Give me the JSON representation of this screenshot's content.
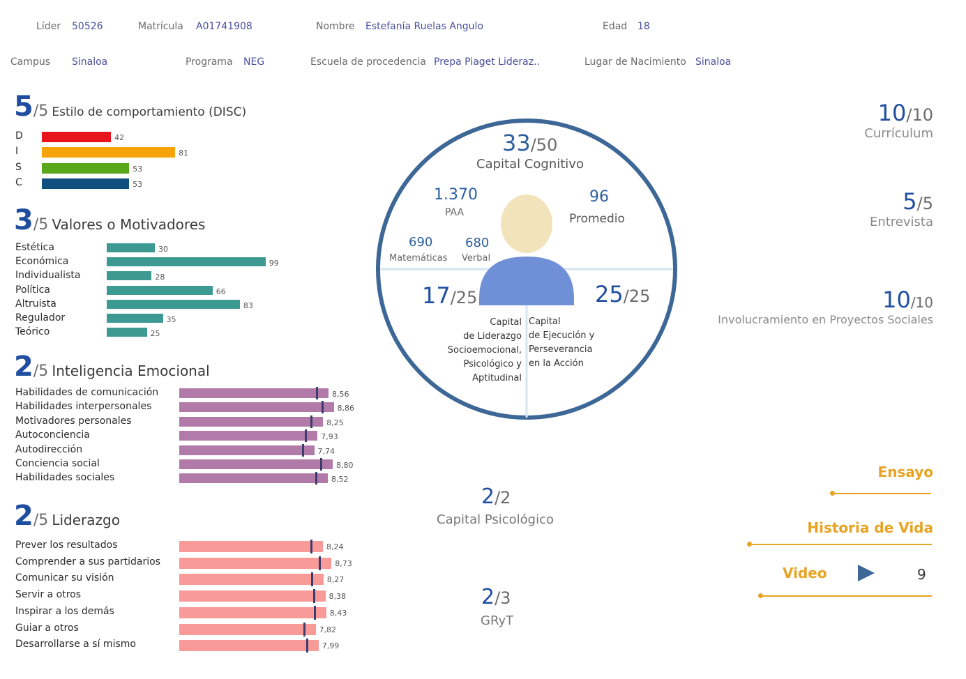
{
  "header": {
    "lider_label": "Líder",
    "lider_value": "50526",
    "matricula_label": "Matrícula",
    "matricula_value": "A01741908",
    "nombre_label": "Nombre",
    "nombre_value": "Estefanía Ruelas Angulo",
    "edad_label": "Edad",
    "edad_value": "18",
    "campus_label": "Campus",
    "campus_value": "Sinaloa",
    "programa_label": "Programa",
    "programa_value": "NEG",
    "escuela_label": "Escuela de procedencia",
    "escuela_value": "Prepa Piaget Lideraz..",
    "lugar_label": "Lugar de Nacimiento",
    "lugar_value": "Sinaloa"
  },
  "chart_data": [
    {
      "type": "bar",
      "title": "Estilo de comportamiento (DISC)",
      "score": "5",
      "score_den": "/5",
      "categories": [
        "D",
        "I",
        "S",
        "C"
      ],
      "values": [
        42,
        81,
        53,
        53
      ],
      "labels": [
        "42",
        "81",
        "53",
        "53"
      ],
      "colors": [
        "#e8141b",
        "#f7a30a",
        "#59a81b",
        "#0f4f7f"
      ]
    },
    {
      "type": "bar",
      "title": "Valores o Motivadores",
      "score": "3",
      "score_den": "/5",
      "categories": [
        "Estética",
        "Económica",
        "Individualista",
        "Política",
        "Altruista",
        "Regulador",
        "Teórico"
      ],
      "values": [
        30,
        99,
        28,
        66,
        83,
        35,
        25
      ],
      "labels": [
        "30",
        "99",
        "28",
        "66",
        "83",
        "35",
        "25"
      ],
      "color": "#3c9a93"
    },
    {
      "type": "bar",
      "title": "Inteligencia Emocional",
      "score": "2",
      "score_den": "/5",
      "categories": [
        "Habilidades de comunicación",
        "Habilidades interpersonales",
        "Motivadores personales",
        "Autoconciencia",
        "Autodirección",
        "Conciencia social",
        "Habilidades sociales"
      ],
      "values": [
        8.56,
        8.86,
        8.25,
        7.93,
        7.74,
        8.8,
        8.52
      ],
      "labels": [
        "8,56",
        "8,86",
        "8,25",
        "7,93",
        "7,74",
        "8,80",
        "8,52"
      ],
      "color": "#b27aa8"
    },
    {
      "type": "bar",
      "title": "Liderazgo",
      "score": "2",
      "score_den": "/5",
      "categories": [
        "Prever los resultados",
        "Comprender a sus partidarios",
        "Comunicar su visión",
        "Servir a otros",
        "Inspirar a los demás",
        "Guiar a otros",
        "Desarrollarse a sí mismo"
      ],
      "values": [
        8.24,
        8.73,
        8.27,
        8.38,
        8.43,
        7.82,
        7.99
      ],
      "labels": [
        "8,24",
        "8,73",
        "8,27",
        "8,38",
        "8,43",
        "7,82",
        "7,99"
      ],
      "color": "#f79a98"
    }
  ],
  "circle": {
    "cognitivo_num": "33",
    "cognitivo_den": "/50",
    "cognitivo_label": "Capital Cognitivo",
    "paa_num": "1.370",
    "paa_label": "PAA",
    "promedio_num": "96",
    "promedio_label": "Promedio",
    "mat_num": "690",
    "mat_label": "Matemáticas",
    "verbal_num": "680",
    "verbal_label": "Verbal",
    "liderazgo_num": "17",
    "liderazgo_den": "/25",
    "liderazgo_lines": [
      "Capital",
      "de Liderazgo",
      "Socioemocional,",
      "Psicológico y",
      "Aptitudinal"
    ],
    "ejecucion_num": "25",
    "ejecucion_den": "/25",
    "ejecucion_lines": [
      "Capital",
      "de Ejecución y",
      "Perseverancia",
      "en la Acción"
    ]
  },
  "psico": {
    "num": "2",
    "den": "/2",
    "label": "Capital Psicológico"
  },
  "gryt": {
    "num": "2",
    "den": "/3",
    "label": "GRyT"
  },
  "right": {
    "curriculum_num": "10",
    "curriculum_den": "/10",
    "curriculum_label": "Currículum",
    "entrevista_num": "5",
    "entrevista_den": "/5",
    "entrevista_label": "Entrevista",
    "proyectos_num": "10",
    "proyectos_den": "/10",
    "proyectos_label": "Involucramiento en Proyectos Sociales",
    "ensayo_label": "Ensayo",
    "historia_label": "Historia de Vida",
    "video_label": "Video",
    "video_value": "9"
  },
  "colors": {
    "accent": "#1f4ea1",
    "gold": "#e8a323",
    "circle": "#3d6796",
    "avatar_head": "#f3e3bb",
    "avatar_body": "#6f8fd6"
  }
}
